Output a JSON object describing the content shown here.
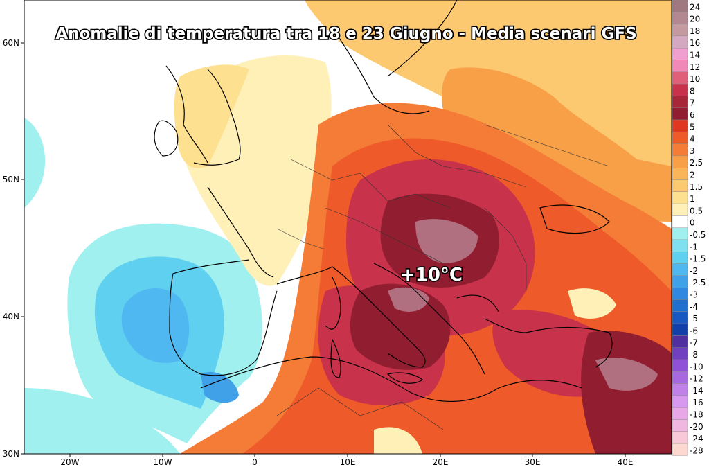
{
  "title": "Anomalie di temperatura tra 18 e 23 Giugno - Media scenari GFS",
  "annotation": "+10°C",
  "lat_labels": [
    "60N",
    "50N",
    "40N",
    "30N"
  ],
  "lon_labels": [
    "20W",
    "10W",
    "0",
    "10E",
    "20E",
    "30E",
    "40E"
  ],
  "legend": {
    "levels": [
      "24",
      "20",
      "18",
      "16",
      "14",
      "12",
      "10",
      "8",
      "7",
      "6",
      "5",
      "4",
      "3",
      "2.5",
      "2",
      "1.5",
      "1",
      "0.5",
      "0",
      "-0.5",
      "-1",
      "-1.5",
      "-2",
      "-2.5",
      "-3",
      "-4",
      "-5",
      "-6",
      "-7",
      "-8",
      "-10",
      "-12",
      "-14",
      "-16",
      "-18",
      "-20",
      "-24",
      "-28"
    ],
    "colors": [
      "#a07880",
      "#b48891",
      "#c49aa0",
      "#d4a8c0",
      "#f0a0d0",
      "#f088b8",
      "#e0607a",
      "#c8324a",
      "#a8283a",
      "#901e30",
      "#e03820",
      "#ee5a2a",
      "#f47c36",
      "#f8a048",
      "#fab45a",
      "#fcc870",
      "#fde090",
      "#fff0b8",
      "#ffffff",
      "#a0f0f0",
      "#80e0f0",
      "#60d0f0",
      "#50b8f0",
      "#40a0e8",
      "#3088e0",
      "#2070d0",
      "#1858c0",
      "#1040a8",
      "#5030a0",
      "#7040c0",
      "#9050d8",
      "#a868e0",
      "#c080e8",
      "#d898f0",
      "#e8a8e8",
      "#f0b8e0",
      "#f8c8d8",
      "#fcd8d0"
    ]
  },
  "colors": {
    "ocean": "#ffffff",
    "land_border": "#000000",
    "warm": "#e04a2a",
    "hot": "#901e30",
    "cool": "#80e0f0"
  }
}
